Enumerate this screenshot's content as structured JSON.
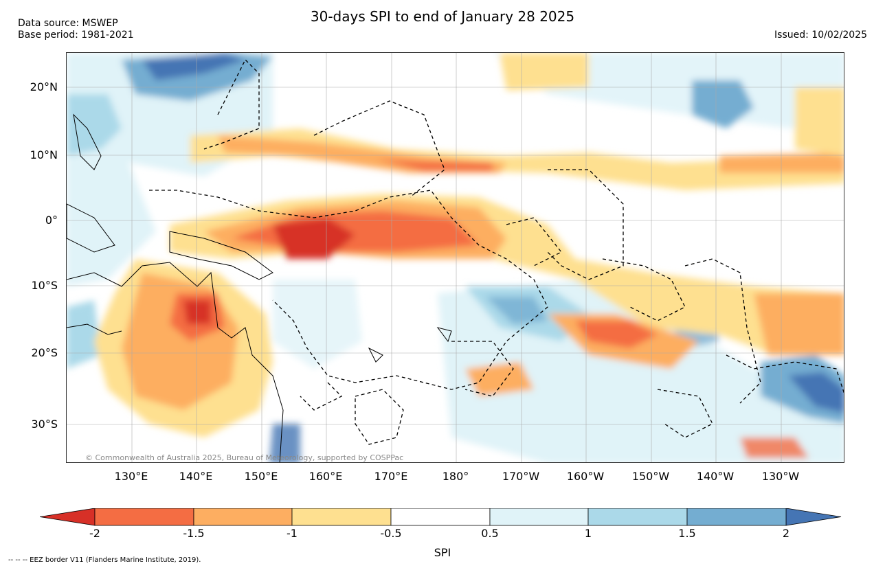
{
  "title": "30-days SPI to end of January 28 2025",
  "source_line1": "Data source: MSWEP",
  "source_line2": "Base period: 1981-2021",
  "issued": "Issued: 10/02/2025",
  "copyright": "© Commonwealth of Australia 2025, Bureau of Meteorology, supported by COSPPac",
  "eez_note": "--  --  -- EEZ border V11 (Flanders Marine Institute, 2019).",
  "lat_labels": [
    "20°N",
    "10°N",
    "0°",
    "10°S",
    "20°S",
    "30°S"
  ],
  "lon_labels": [
    "130°E",
    "140°E",
    "150°E",
    "160°E",
    "170°E",
    "180°",
    "170°W",
    "160°W",
    "150°W",
    "140°W",
    "130°W"
  ],
  "colorbar": {
    "label": "SPI",
    "ticks": [
      "-2",
      "-1.5",
      "-1",
      "-0.5",
      "0.5",
      "1",
      "1.5",
      "2"
    ],
    "colors": [
      "#d73027",
      "#f46d43",
      "#fdae61",
      "#fee090",
      "#ffffff",
      "#e0f3f8",
      "#abd9e9",
      "#74add1",
      "#4575b4"
    ]
  },
  "map_extent": {
    "lon_min": 120,
    "lon_max": 240,
    "lat_min": -35,
    "lat_max": 25
  }
}
